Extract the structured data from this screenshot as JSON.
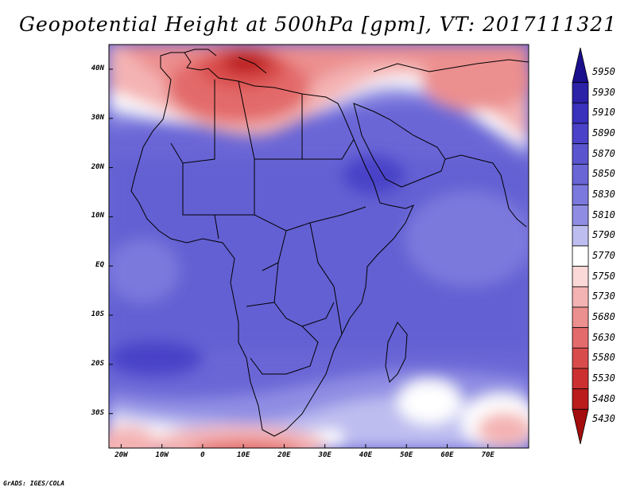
{
  "title": "Geopotential Height at 500hPa [gpm], VT: 2017111321",
  "credit": "GrADS: IGES/COLA",
  "map": {
    "projection": "latlon",
    "region": "Africa",
    "lon_range": [
      -23,
      80
    ],
    "lat_range": [
      -37,
      45
    ],
    "lat_labels": [
      {
        "lat": 40,
        "text": "40N"
      },
      {
        "lat": 30,
        "text": "30N"
      },
      {
        "lat": 20,
        "text": "20N"
      },
      {
        "lat": 10,
        "text": "10N"
      },
      {
        "lat": 0,
        "text": "EQ"
      },
      {
        "lat": -10,
        "text": "10S"
      },
      {
        "lat": -20,
        "text": "20S"
      },
      {
        "lat": -30,
        "text": "30S"
      }
    ],
    "lon_labels": [
      {
        "lon": -20,
        "text": "20W"
      },
      {
        "lon": -10,
        "text": "10W"
      },
      {
        "lon": 0,
        "text": "0"
      },
      {
        "lon": 10,
        "text": "10E"
      },
      {
        "lon": 20,
        "text": "20E"
      },
      {
        "lon": 30,
        "text": "30E"
      },
      {
        "lon": 40,
        "text": "40E"
      },
      {
        "lon": 50,
        "text": "50E"
      },
      {
        "lon": 60,
        "text": "60E"
      },
      {
        "lon": 70,
        "text": "70E"
      }
    ]
  },
  "colorbar": {
    "labels": [
      "5950",
      "5930",
      "5910",
      "5890",
      "5870",
      "5850",
      "5830",
      "5810",
      "5790",
      "5770",
      "5750",
      "5730",
      "5680",
      "5630",
      "5580",
      "5530",
      "5480",
      "5430"
    ],
    "colors": [
      "#1a0f8c",
      "#2b22a8",
      "#3a31bd",
      "#4a42c8",
      "#5a55cf",
      "#6a66d6",
      "#7b79dd",
      "#8f8de3",
      "#bdbdf0",
      "#ffffff",
      "#fbd9d9",
      "#f4b3b3",
      "#ec8f8f",
      "#e36b6b",
      "#d94c4c",
      "#cd3030",
      "#bb1d1d",
      "#a40d0d"
    ]
  }
}
